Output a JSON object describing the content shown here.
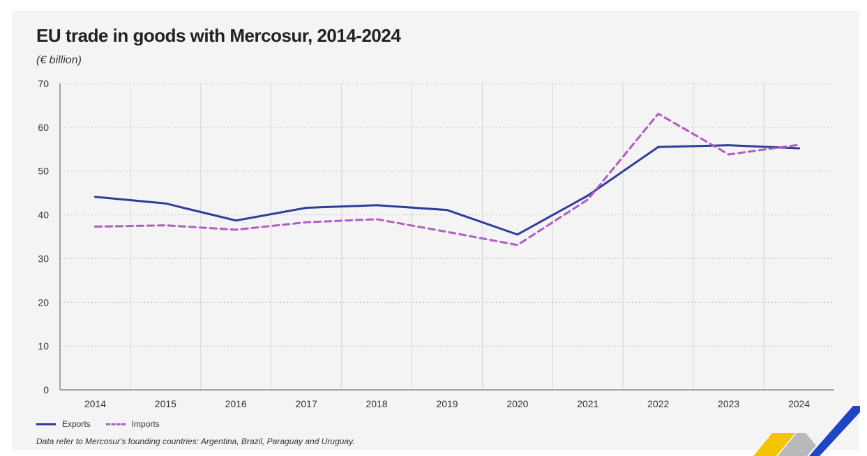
{
  "header": {
    "title": "EU trade in goods with Mercosur, 2014-2024",
    "subtitle": "(€ billion)"
  },
  "legend": {
    "exports": "Exports",
    "imports": "Imports"
  },
  "footnote": "Data refer to Mercosur's founding countries: Argentina, Brazil, Paraguay and Uruguay.",
  "colors": {
    "exports": "#2e3d9a",
    "imports": "#b15cc4",
    "grid": "#bdbdbd",
    "axis": "#555555"
  },
  "chart_data": {
    "type": "line",
    "title": "EU trade in goods with Mercosur, 2014-2024",
    "ylabel": "€ billion",
    "xlabel": "",
    "ylim": [
      0,
      70
    ],
    "yticks": [
      0,
      10,
      20,
      30,
      40,
      50,
      60,
      70
    ],
    "categories": [
      "2014",
      "2015",
      "2016",
      "2017",
      "2018",
      "2019",
      "2020",
      "2021",
      "2022",
      "2023",
      "2024"
    ],
    "series": [
      {
        "name": "Exports",
        "style": "solid",
        "values": [
          44.1,
          42.6,
          38.7,
          41.6,
          42.2,
          41.1,
          35.5,
          44.4,
          55.5,
          55.9,
          55.2
        ]
      },
      {
        "name": "Imports",
        "style": "dashed",
        "values": [
          37.3,
          37.6,
          36.6,
          38.3,
          39.0,
          36.1,
          33.1,
          43.5,
          63.1,
          53.8,
          56.0
        ]
      }
    ],
    "grid": true,
    "legend_position": "bottom-left"
  }
}
